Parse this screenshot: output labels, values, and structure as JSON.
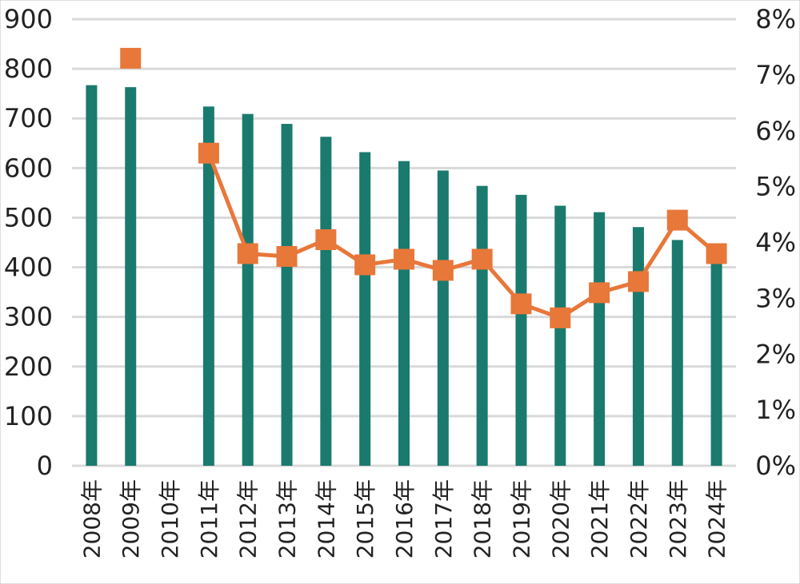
{
  "chart_data": {
    "type": "bar",
    "categories": [
      "2008年",
      "2009年",
      "2010年",
      "2011年",
      "2012年",
      "2013年",
      "2014年",
      "2015年",
      "2016年",
      "2017年",
      "2018年",
      "2019年",
      "2020年",
      "2021年",
      "2022年",
      "2023年",
      "2024年"
    ],
    "series": [
      {
        "kind": "bar",
        "axis": "left",
        "color": "#1a7a6e",
        "values": [
          767,
          763,
          null,
          724,
          709,
          689,
          663,
          632,
          614,
          595,
          564,
          546,
          524,
          511,
          481,
          455,
          430
        ]
      },
      {
        "kind": "line",
        "axis": "right",
        "color": "#e8773a",
        "marker": "square",
        "values": [
          null,
          7.3,
          null,
          5.6,
          3.8,
          3.75,
          4.05,
          3.6,
          3.7,
          3.5,
          3.7,
          2.9,
          2.65,
          3.1,
          3.3,
          4.4,
          3.8
        ]
      }
    ],
    "y_left": {
      "min": 0,
      "max": 900,
      "ticks": [
        "0",
        "100",
        "200",
        "300",
        "400",
        "500",
        "600",
        "700",
        "800",
        "900"
      ]
    },
    "y_right": {
      "min": 0,
      "max": 8,
      "ticks": [
        "0%",
        "1%",
        "2%",
        "3%",
        "4%",
        "5%",
        "6%",
        "7%",
        "8%"
      ]
    },
    "grid": true,
    "gridline_color": "#d9d9d9",
    "legend": "none"
  }
}
